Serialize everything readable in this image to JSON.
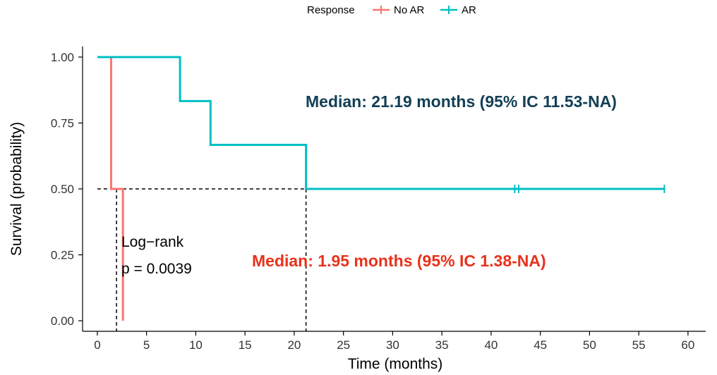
{
  "chart_data": {
    "type": "line",
    "title": "",
    "xlabel": "Time (months)",
    "ylabel": "Survival (probability)",
    "xlim": [
      -1.5,
      61.8
    ],
    "ylim": [
      -0.04,
      1.04
    ],
    "x_ticks": [
      0,
      5,
      10,
      15,
      20,
      25,
      30,
      35,
      40,
      45,
      50,
      55,
      60
    ],
    "y_ticks": [
      0.0,
      0.25,
      0.5,
      0.75,
      1.0
    ],
    "x_tick_labels": [
      "0",
      "5",
      "10",
      "15",
      "20",
      "25",
      "30",
      "35",
      "40",
      "45",
      "50",
      "55",
      "60"
    ],
    "y_tick_labels": [
      "0.00",
      "0.25",
      "0.50",
      "0.75",
      "1.00"
    ],
    "grid": false,
    "legend": {
      "title": "Response",
      "placement": "top-center"
    },
    "series": [
      {
        "name": "No AR",
        "color": "#F8766D",
        "step_points": [
          [
            0,
            1.0
          ],
          [
            1.4,
            1.0
          ],
          [
            1.4,
            0.5
          ],
          [
            2.6,
            0.5
          ],
          [
            2.6,
            0.0
          ]
        ],
        "censor_times": []
      },
      {
        "name": "AR",
        "color": "#00BFC4",
        "step_points": [
          [
            0,
            1.0
          ],
          [
            8.4,
            1.0
          ],
          [
            8.4,
            0.833
          ],
          [
            11.5,
            0.833
          ],
          [
            11.5,
            0.667
          ],
          [
            21.2,
            0.667
          ],
          [
            21.2,
            0.5
          ],
          [
            57.6,
            0.5
          ]
        ],
        "censor_times": [
          42.4,
          42.8,
          57.6
        ]
      }
    ],
    "median_lines": [
      {
        "x_start": 0,
        "y": 0.5,
        "x_end": 21.2
      },
      {
        "x": 1.95,
        "y_top": 0.5
      },
      {
        "x": 21.2,
        "y_top": 0.5
      }
    ],
    "annotations": {
      "logrank_label": "Log−rank",
      "p_value": "p = 0.0039",
      "median_ar": "Median: 21.19 months (95% IC 11.53-NA)",
      "median_ar_color": "#123F55",
      "median_noar": "Median: 1.95 months (95% IC 1.38-NA)",
      "median_noar_color": "#E8321C"
    }
  }
}
